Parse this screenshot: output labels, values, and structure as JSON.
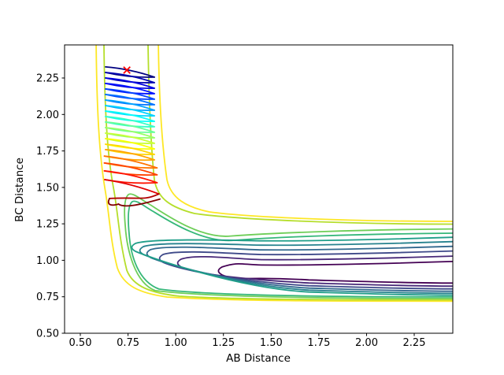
{
  "figure": {
    "xlabel": "AB Distance",
    "ylabel": "BC Distance"
  },
  "chart_data": {
    "type": "contour",
    "title": "",
    "xlabel": "AB Distance",
    "ylabel": "BC Distance",
    "xlim": [
      0.417,
      2.452
    ],
    "ylim": [
      0.5,
      2.477
    ],
    "xticks": [
      "0.50",
      "0.75",
      "1.00",
      "1.25",
      "1.50",
      "1.75",
      "2.00",
      "2.25"
    ],
    "yticks": [
      "0.50",
      "0.75",
      "1.00",
      "1.25",
      "1.50",
      "1.75",
      "2.00",
      "2.25"
    ],
    "grid": false,
    "legend": "none",
    "description": "Potential energy surface contour plot (viridis levels) with a classical trajectory (jet-colored, AB bond oscillating while BC distance decreases) and a red x start marker.",
    "contours": {
      "colormap": "viridis",
      "n_levels": 10,
      "level_colors": [
        "#440154",
        "#482878",
        "#3e4989",
        "#31688e",
        "#26828e",
        "#1f9e89",
        "#35b779",
        "#6ece58",
        "#b5de2b",
        "#fde725"
      ],
      "valley_bc_upper_at_right_edge": [
        0.992,
        1.029,
        1.064,
        1.096,
        1.128,
        1.158,
        1.186,
        1.215,
        1.248,
        1.267
      ],
      "valley_bc_lower_at_right_edge": [
        0.844,
        0.823,
        0.804,
        0.788,
        0.774,
        0.761,
        0.749,
        0.738,
        0.729,
        0.72
      ],
      "closed_levels": [
        {
          "color": "#440154",
          "tip_ab": 1.222,
          "tip_bc": 0.927,
          "bc_hi": 0.992,
          "bc_lo": 0.844
        },
        {
          "color": "#482878",
          "tip_ab": 1.008,
          "tip_bc": 0.981,
          "bc_hi": 1.029,
          "bc_lo": 0.823
        },
        {
          "color": "#3e4989",
          "tip_ab": 0.913,
          "tip_bc": 1.013,
          "bc_hi": 1.064,
          "bc_lo": 0.804
        },
        {
          "color": "#31688e",
          "tip_ab": 0.847,
          "tip_bc": 1.046,
          "bc_hi": 1.096,
          "bc_lo": 0.788
        },
        {
          "color": "#26828e",
          "tip_ab": 0.81,
          "tip_bc": 1.067,
          "bc_hi": 1.128,
          "bc_lo": 0.774
        },
        {
          "color": "#1f9e89",
          "tip_ab": 0.768,
          "tip_bc": 1.089,
          "bc_hi": 1.158,
          "bc_lo": 0.761
        }
      ],
      "channel_wall_ab_at_top": {
        "outer_left": 0.583,
        "inner_left": 0.624,
        "inner_right": 0.855,
        "outer_right": 0.909
      },
      "hook_levels": [
        {
          "color": "#6ece58",
          "tip_ab": 0.752,
          "tip_bc": 1.451,
          "bc_hi": 1.215,
          "bc_lo": 0.738
        },
        {
          "color": "#35b779",
          "tip_ab": 0.772,
          "tip_bc": 1.402,
          "bc_hi": 1.186,
          "bc_lo": 0.749
        }
      ]
    },
    "trajectory": {
      "colormap": "jet",
      "start_marker": {
        "ab": 0.744,
        "bc": 2.304,
        "marker": "x",
        "color": "#ff0000"
      },
      "ab_left": 0.632,
      "ab_right": 0.888,
      "ab_left_late": 0.626,
      "ab_right_late": 0.902,
      "loop_bc": [
        2.326,
        2.288,
        2.25,
        2.213,
        2.175,
        2.137,
        2.099,
        2.061,
        2.023,
        1.986,
        1.948,
        1.91,
        1.872,
        1.834,
        1.796,
        1.759,
        1.715,
        1.667,
        1.613,
        1.553
      ],
      "loop_drop": 0.07,
      "loop_drop_late": 0.081,
      "last_loop": {
        "ab_left": 0.628,
        "ab_right": 0.912,
        "drop": 0.098
      },
      "tail_points": [
        [
          0.912,
          1.455
        ],
        [
          0.653,
          1.424
        ],
        [
          0.7,
          1.386
        ],
        [
          0.8,
          1.381
        ],
        [
          0.917,
          1.42
        ]
      ],
      "loop_colors": [
        "#000080",
        "#0000b0",
        "#0000e1",
        "#0012ff",
        "#0043ff",
        "#0073ff",
        "#00a4ff",
        "#00d4ff",
        "#06fff9",
        "#37ffc8",
        "#67ff98",
        "#98ff67",
        "#c8ff37",
        "#f9ff06",
        "#ffd400",
        "#ffa400",
        "#ff7300",
        "#ff4300",
        "#ff1200",
        "#e10000"
      ],
      "tail_colors": [
        "#b00000",
        "#800000"
      ]
    }
  }
}
